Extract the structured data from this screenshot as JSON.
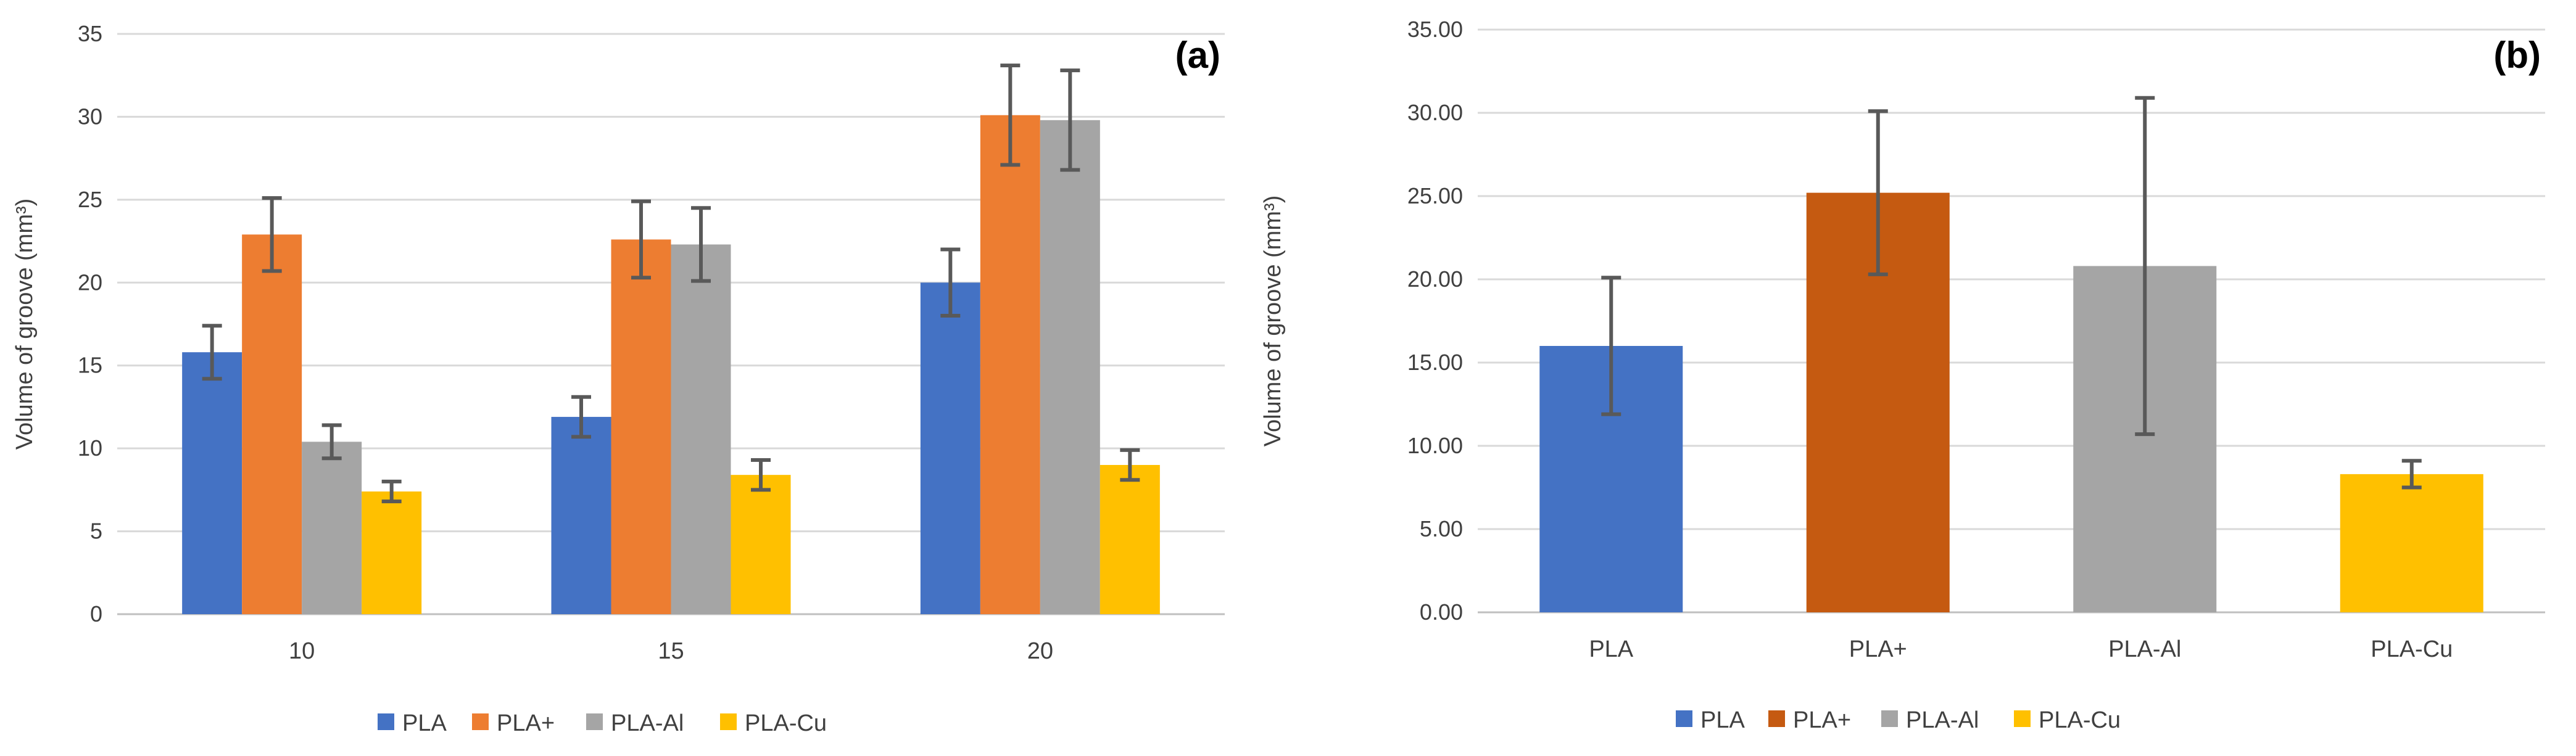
{
  "chart_data": [
    {
      "type": "bar",
      "panel_label": "(a)",
      "categories": [
        "10",
        "15",
        "20"
      ],
      "ylabel": "Volume of groove (mm³)",
      "ylim": [
        0,
        35
      ],
      "yticks": [
        "0",
        "5",
        "10",
        "15",
        "20",
        "25",
        "30",
        "35"
      ],
      "grid": true,
      "legend_position": "bottom",
      "series": [
        {
          "name": "PLA",
          "color": "#4472C4",
          "values": [
            15.8,
            11.9,
            20.0
          ],
          "errors": [
            1.6,
            1.2,
            2.0
          ]
        },
        {
          "name": "PLA+",
          "color": "#ED7D31",
          "values": [
            22.9,
            22.6,
            30.1
          ],
          "errors": [
            2.2,
            2.3,
            3.0
          ]
        },
        {
          "name": "PLA-Al",
          "color": "#A5A5A5",
          "values": [
            10.4,
            22.3,
            29.8
          ],
          "errors": [
            1.0,
            2.2,
            3.0
          ]
        },
        {
          "name": "PLA-Cu",
          "color": "#FFC000",
          "values": [
            7.4,
            8.4,
            9.0
          ],
          "errors": [
            0.6,
            0.9,
            0.9
          ]
        }
      ]
    },
    {
      "type": "bar",
      "panel_label": "(b)",
      "categories": [
        "PLA",
        "PLA+",
        "PLA-Al",
        "PLA-Cu"
      ],
      "ylabel": "Volume of groove (mm³)",
      "ylim": [
        0,
        35
      ],
      "yticks": [
        "0.00",
        "5.00",
        "10.00",
        "15.00",
        "20.00",
        "25.00",
        "30.00",
        "35.00"
      ],
      "grid": true,
      "legend_position": "bottom",
      "values": [
        16.0,
        25.2,
        20.8,
        8.3
      ],
      "errors": [
        4.1,
        4.9,
        10.1,
        0.8
      ],
      "colors": [
        "#4472C4",
        "#C55A11",
        "#A5A5A5",
        "#FFC000"
      ],
      "legend": [
        "PLA",
        "PLA+",
        "PLA-Al",
        "PLA-Cu"
      ]
    }
  ]
}
